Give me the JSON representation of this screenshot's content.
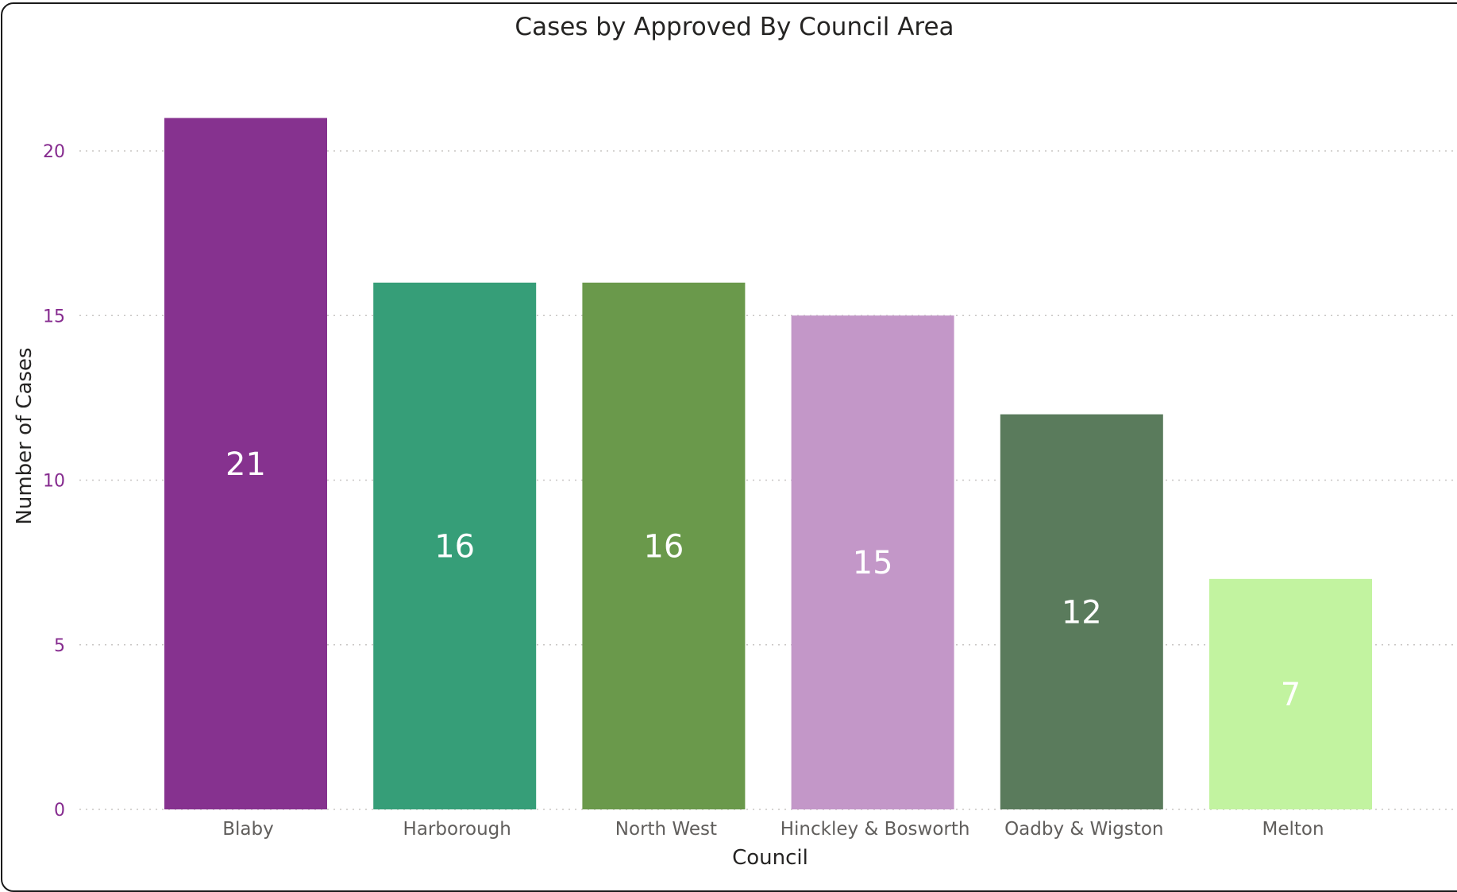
{
  "chart_data": {
    "type": "bar",
    "title": "Cases by Approved By Council Area",
    "xlabel": "Council",
    "ylabel": "Number of Cases",
    "categories": [
      "Blaby",
      "Harborough",
      "North West",
      "Hinckley & Bosworth",
      "Oadby & Wigston",
      "Melton"
    ],
    "values": [
      21,
      16,
      16,
      15,
      12,
      7
    ],
    "data_labels": [
      "21",
      "16",
      "16",
      "15",
      "12",
      "7"
    ],
    "colors": [
      "#86328f",
      "#369e78",
      "#6a994b",
      "#c397c8",
      "#5a7b5c",
      "#c2f3a0"
    ],
    "yticks": [
      "0",
      "5",
      "10",
      "15",
      "20"
    ],
    "ylim": [
      0,
      21
    ],
    "grid": true,
    "legend": "none"
  }
}
